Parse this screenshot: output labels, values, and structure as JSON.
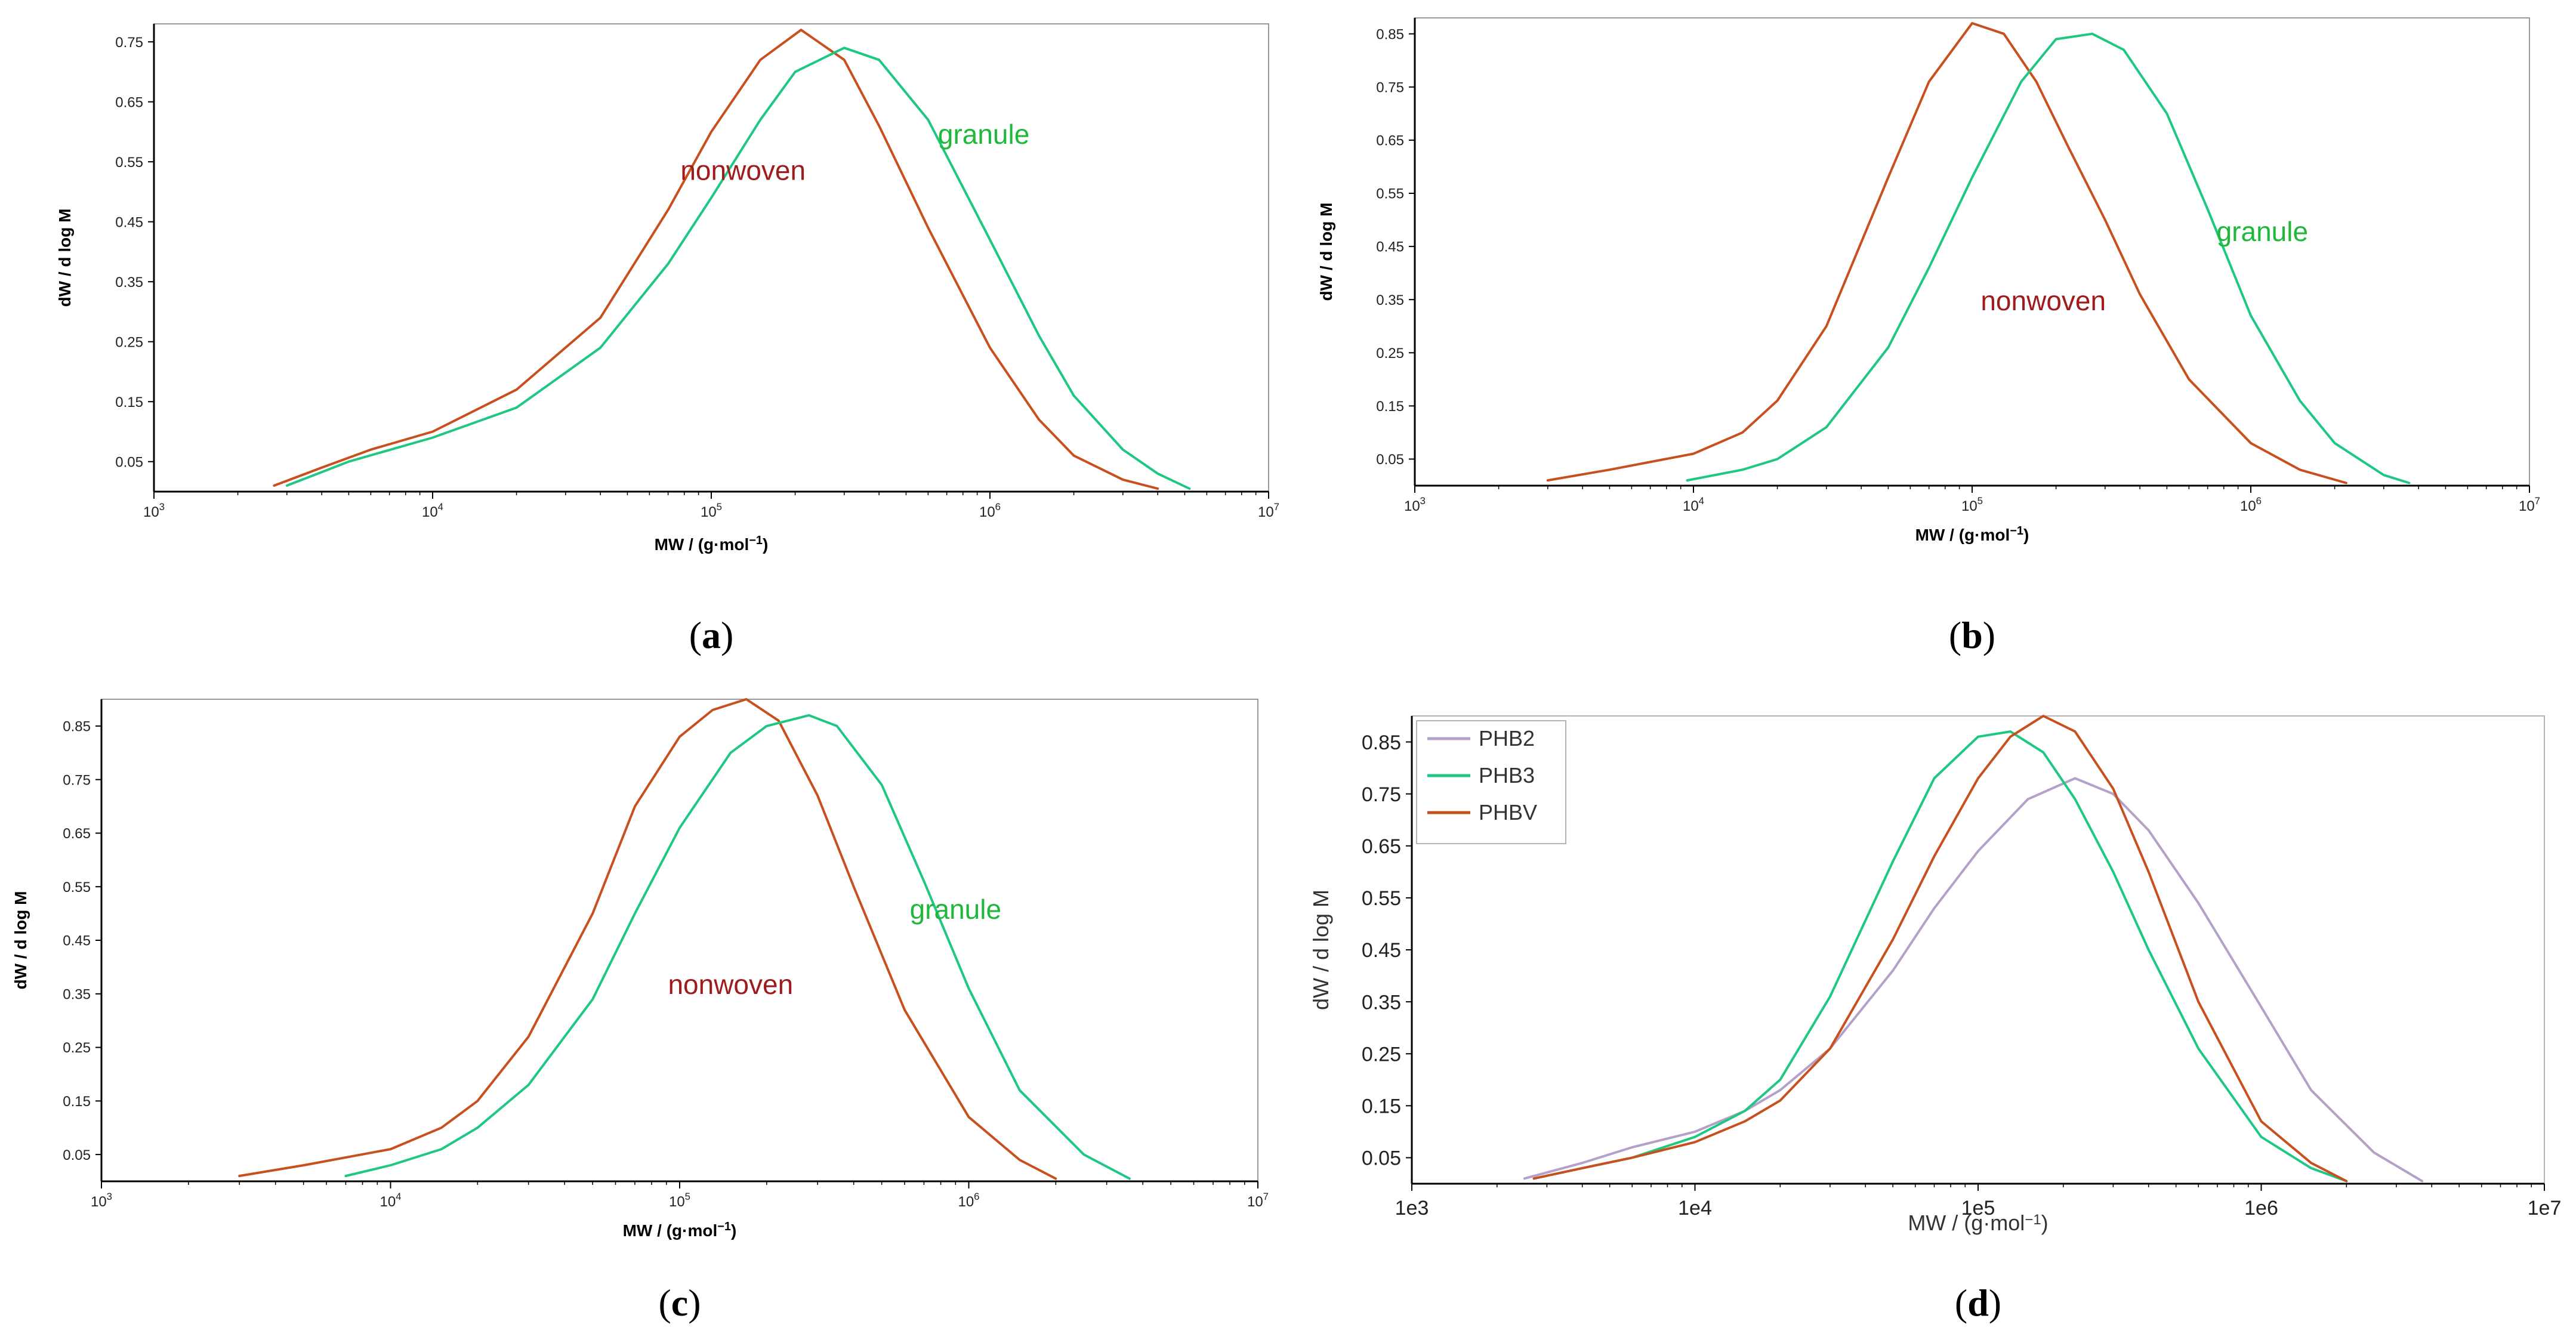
{
  "chart_data": [
    {
      "type": "line",
      "panel_label": "a",
      "xlabel": "MW / (g·mol",
      "xlabel_sup": "−1",
      "xlabel_tail": ")",
      "ylabel": "dW / d log M",
      "x_scale": "log",
      "xlim": [
        1000,
        10000000
      ],
      "ylim": [
        0,
        0.78
      ],
      "x_ticks": [
        {
          "base": "10",
          "exp": "3"
        },
        {
          "base": "10",
          "exp": "4"
        },
        {
          "base": "10",
          "exp": "5"
        },
        {
          "base": "10",
          "exp": "6"
        },
        {
          "base": "10",
          "exp": "7"
        }
      ],
      "y_ticks": [
        "0.05",
        "0.15",
        "0.25",
        "0.35",
        "0.45",
        "0.55",
        "0.65",
        "0.75"
      ],
      "y_tick_values": [
        0.05,
        0.15,
        0.25,
        0.35,
        0.45,
        0.55,
        0.65,
        0.75
      ],
      "series": [
        {
          "name": "nonwoven",
          "color": "#c8501e",
          "label_color": "#a01c1c",
          "x": [
            2700,
            4000,
            6000,
            10000,
            20000,
            40000,
            70000,
            100000,
            150000,
            210000,
            300000,
            400000,
            600000,
            1000000,
            1500000,
            2000000,
            3000000,
            4000000
          ],
          "y": [
            0.01,
            0.04,
            0.07,
            0.1,
            0.17,
            0.29,
            0.47,
            0.6,
            0.72,
            0.77,
            0.72,
            0.61,
            0.44,
            0.24,
            0.12,
            0.06,
            0.02,
            0.005
          ]
        },
        {
          "name": "granule",
          "color": "#1ec882",
          "label_color": "#1fb83a",
          "x": [
            3000,
            5000,
            10000,
            20000,
            40000,
            70000,
            100000,
            150000,
            200000,
            300000,
            400000,
            600000,
            1000000,
            1500000,
            2000000,
            3000000,
            4000000,
            5200000
          ],
          "y": [
            0.01,
            0.05,
            0.09,
            0.14,
            0.24,
            0.38,
            0.49,
            0.62,
            0.7,
            0.74,
            0.72,
            0.62,
            0.42,
            0.26,
            0.16,
            0.07,
            0.03,
            0.005
          ]
        }
      ],
      "annotations": [
        {
          "series": "nonwoven",
          "text": "nonwoven",
          "at_x": 130000,
          "at_y": 0.52
        },
        {
          "series": "granule",
          "text": "granule",
          "at_x": 950000,
          "at_y": 0.58
        }
      ]
    },
    {
      "type": "line",
      "panel_label": "b",
      "xlabel": "MW / (g·mol",
      "xlabel_sup": "−1",
      "xlabel_tail": ")",
      "ylabel": "dW / d log M",
      "x_scale": "log",
      "xlim": [
        1000,
        10000000
      ],
      "ylim": [
        0,
        0.88
      ],
      "x_ticks": [
        {
          "base": "10",
          "exp": "3"
        },
        {
          "base": "10",
          "exp": "4"
        },
        {
          "base": "10",
          "exp": "5"
        },
        {
          "base": "10",
          "exp": "6"
        },
        {
          "base": "10",
          "exp": "7"
        }
      ],
      "y_ticks": [
        "0.05",
        "0.15",
        "0.25",
        "0.35",
        "0.45",
        "0.55",
        "0.65",
        "0.75",
        "0.85"
      ],
      "y_tick_values": [
        0.05,
        0.15,
        0.25,
        0.35,
        0.45,
        0.55,
        0.65,
        0.75,
        0.85
      ],
      "series": [
        {
          "name": "nonwoven",
          "color": "#c8501e",
          "label_color": "#a01c1c",
          "x": [
            3000,
            5000,
            10000,
            15000,
            20000,
            30000,
            50000,
            70000,
            100000,
            130000,
            170000,
            220000,
            300000,
            400000,
            600000,
            1000000,
            1500000,
            2200000
          ],
          "y": [
            0.01,
            0.03,
            0.06,
            0.1,
            0.16,
            0.3,
            0.58,
            0.76,
            0.87,
            0.85,
            0.76,
            0.64,
            0.5,
            0.36,
            0.2,
            0.08,
            0.03,
            0.005
          ]
        },
        {
          "name": "granule",
          "color": "#1ec882",
          "label_color": "#1fb83a",
          "x": [
            9500,
            15000,
            20000,
            30000,
            50000,
            70000,
            100000,
            150000,
            200000,
            270000,
            350000,
            500000,
            700000,
            1000000,
            1500000,
            2000000,
            3000000,
            3700000
          ],
          "y": [
            0.01,
            0.03,
            0.05,
            0.11,
            0.26,
            0.41,
            0.58,
            0.76,
            0.84,
            0.85,
            0.82,
            0.7,
            0.52,
            0.32,
            0.16,
            0.08,
            0.02,
            0.005
          ]
        }
      ],
      "annotations": [
        {
          "series": "nonwoven",
          "text": "nonwoven",
          "at_x": 180000,
          "at_y": 0.33
        },
        {
          "series": "granule",
          "text": "granule",
          "at_x": 1100000,
          "at_y": 0.46
        }
      ]
    },
    {
      "type": "line",
      "panel_label": "c",
      "xlabel": "MW / (g·mol",
      "xlabel_sup": "−1",
      "xlabel_tail": ")",
      "ylabel": "dW / d log M",
      "x_scale": "log",
      "xlim": [
        1000,
        10000000
      ],
      "ylim": [
        0,
        0.9
      ],
      "x_ticks": [
        {
          "base": "10",
          "exp": "3"
        },
        {
          "base": "10",
          "exp": "4"
        },
        {
          "base": "10",
          "exp": "5"
        },
        {
          "base": "10",
          "exp": "6"
        },
        {
          "base": "10",
          "exp": "7"
        }
      ],
      "y_ticks": [
        "0.05",
        "0.15",
        "0.25",
        "0.35",
        "0.45",
        "0.55",
        "0.65",
        "0.75",
        "0.85"
      ],
      "y_tick_values": [
        0.05,
        0.15,
        0.25,
        0.35,
        0.45,
        0.55,
        0.65,
        0.75,
        0.85
      ],
      "series": [
        {
          "name": "nonwoven",
          "color": "#c8501e",
          "label_color": "#a01c1c",
          "x": [
            3000,
            5000,
            10000,
            15000,
            20000,
            30000,
            50000,
            70000,
            100000,
            130000,
            170000,
            220000,
            300000,
            400000,
            600000,
            1000000,
            1500000,
            2000000
          ],
          "y": [
            0.01,
            0.03,
            0.06,
            0.1,
            0.15,
            0.27,
            0.5,
            0.7,
            0.83,
            0.88,
            0.9,
            0.86,
            0.72,
            0.55,
            0.32,
            0.12,
            0.04,
            0.005
          ]
        },
        {
          "name": "granule",
          "color": "#1ec882",
          "label_color": "#1fb83a",
          "x": [
            7000,
            10000,
            15000,
            20000,
            30000,
            50000,
            70000,
            100000,
            150000,
            200000,
            280000,
            350000,
            500000,
            700000,
            1000000,
            1500000,
            2500000,
            3600000
          ],
          "y": [
            0.01,
            0.03,
            0.06,
            0.1,
            0.18,
            0.34,
            0.5,
            0.66,
            0.8,
            0.85,
            0.87,
            0.85,
            0.74,
            0.56,
            0.36,
            0.17,
            0.05,
            0.005
          ]
        }
      ],
      "annotations": [
        {
          "series": "nonwoven",
          "text": "nonwoven",
          "at_x": 150000,
          "at_y": 0.35
        },
        {
          "series": "granule",
          "text": "granule",
          "at_x": 900000,
          "at_y": 0.49
        }
      ]
    },
    {
      "type": "line",
      "panel_label": "d",
      "xlabel": "MW / (g·mol",
      "xlabel_sup": "−1",
      "xlabel_tail": ")",
      "ylabel": "dW / d log M",
      "x_scale": "log",
      "xlim": [
        1000,
        10000000
      ],
      "ylim": [
        0,
        0.9
      ],
      "x_ticks": [
        {
          "base": "1e3",
          "exp": ""
        },
        {
          "base": "1e4",
          "exp": ""
        },
        {
          "base": "1e5",
          "exp": ""
        },
        {
          "base": "1e6",
          "exp": ""
        },
        {
          "base": "1e7",
          "exp": ""
        }
      ],
      "y_ticks": [
        "0.05",
        "0.15",
        "0.25",
        "0.35",
        "0.45",
        "0.55",
        "0.65",
        "0.75",
        "0.85"
      ],
      "y_tick_values": [
        0.05,
        0.15,
        0.25,
        0.35,
        0.45,
        0.55,
        0.65,
        0.75,
        0.85
      ],
      "legend": {
        "position": "top-left",
        "entries": [
          "PHB2",
          "PHB3",
          "PHBV"
        ]
      },
      "series": [
        {
          "name": "PHB2",
          "color": "#b4a0c8",
          "x": [
            2500,
            4000,
            6000,
            10000,
            15000,
            20000,
            30000,
            50000,
            70000,
            100000,
            150000,
            220000,
            300000,
            400000,
            600000,
            1000000,
            1500000,
            2500000,
            3700000
          ],
          "y": [
            0.01,
            0.04,
            0.07,
            0.1,
            0.14,
            0.18,
            0.26,
            0.41,
            0.53,
            0.64,
            0.74,
            0.78,
            0.75,
            0.68,
            0.54,
            0.34,
            0.18,
            0.06,
            0.005
          ]
        },
        {
          "name": "PHB3",
          "color": "#1ec882",
          "x": [
            2700,
            4000,
            6000,
            10000,
            15000,
            20000,
            30000,
            50000,
            70000,
            100000,
            130000,
            170000,
            220000,
            300000,
            400000,
            600000,
            1000000,
            1500000,
            2000000
          ],
          "y": [
            0.01,
            0.03,
            0.05,
            0.09,
            0.14,
            0.2,
            0.36,
            0.62,
            0.78,
            0.86,
            0.87,
            0.83,
            0.74,
            0.6,
            0.45,
            0.26,
            0.09,
            0.03,
            0.005
          ]
        },
        {
          "name": "PHBV",
          "color": "#c8501e",
          "x": [
            2700,
            4000,
            6000,
            10000,
            15000,
            20000,
            30000,
            50000,
            70000,
            100000,
            130000,
            170000,
            220000,
            300000,
            400000,
            600000,
            1000000,
            1500000,
            2000000
          ],
          "y": [
            0.01,
            0.03,
            0.05,
            0.08,
            0.12,
            0.16,
            0.26,
            0.47,
            0.63,
            0.78,
            0.86,
            0.9,
            0.87,
            0.76,
            0.6,
            0.35,
            0.12,
            0.04,
            0.005
          ]
        }
      ],
      "annotations": []
    }
  ]
}
